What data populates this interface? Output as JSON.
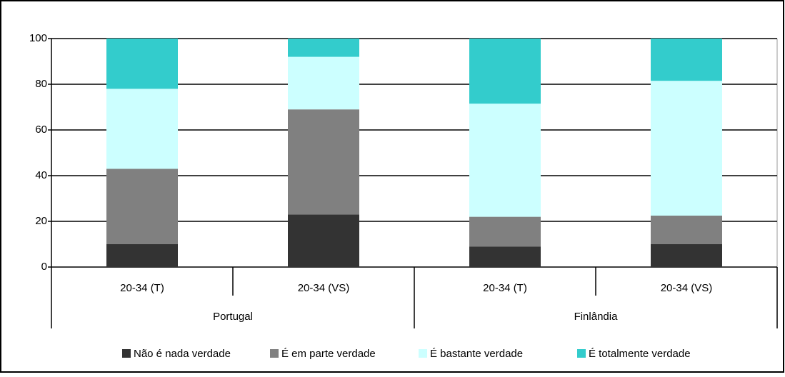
{
  "chart_data": {
    "type": "stacked_bar",
    "categories": [
      "20-34 (T)",
      "20-34 (VS)",
      "20-34 (T)",
      "20-34 (VS)"
    ],
    "groups": [
      "Portugal",
      "Finlândia"
    ],
    "series": [
      {
        "name": "Não é nada verdade",
        "color": "#333333",
        "values": [
          10,
          23,
          9,
          10
        ]
      },
      {
        "name": "É em parte verdade",
        "color": "#808080",
        "values": [
          33,
          46,
          13,
          12.5
        ]
      },
      {
        "name": "É bastante verdade",
        "color": "#ccffff",
        "values": [
          35,
          23,
          49.5,
          59
        ]
      },
      {
        "name": "É totalmente verdade",
        "color": "#33cccc",
        "values": [
          22,
          8,
          28.5,
          18.5
        ]
      }
    ],
    "ylim": [
      0,
      100
    ],
    "yticks": [
      0,
      20,
      40,
      60,
      80,
      100
    ],
    "grid": true,
    "legend": "bottom"
  }
}
